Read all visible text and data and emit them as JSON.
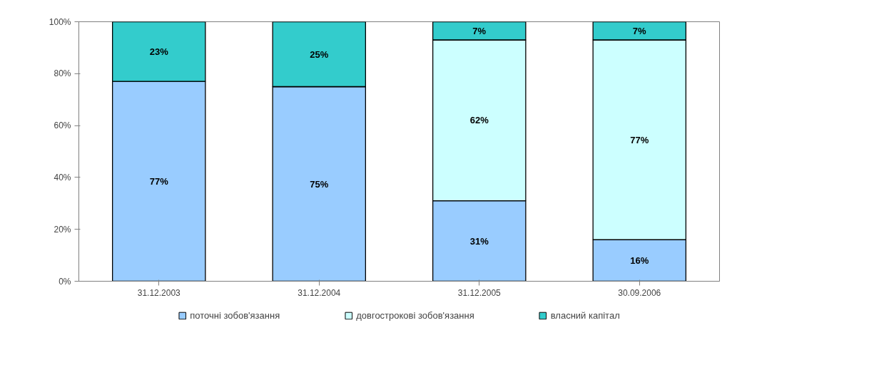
{
  "chart_data": {
    "type": "bar",
    "stacked": true,
    "categories": [
      "31.12.2003",
      "31.12.2004",
      "31.12.2005",
      "30.09.2006"
    ],
    "ylim": [
      0,
      100
    ],
    "yticks": [
      {
        "value": 0,
        "label": "0%"
      },
      {
        "value": 20,
        "label": "20%"
      },
      {
        "value": 40,
        "label": "40%"
      },
      {
        "value": 60,
        "label": "60%"
      },
      {
        "value": 80,
        "label": "80%"
      },
      {
        "value": 100,
        "label": "100%"
      }
    ],
    "grid": false,
    "legend": "bottom",
    "series": [
      {
        "name": "поточні зобов'язання",
        "color": "#99ccff",
        "values": [
          77,
          75,
          31,
          16
        ],
        "value_labels": [
          "77%",
          "75%",
          "31%",
          "16%"
        ]
      },
      {
        "name": "довгострокові зобов'язання",
        "color": "#ccffff",
        "values": [
          0,
          0,
          62,
          77
        ],
        "value_labels": [
          null,
          null,
          "62%",
          "77%"
        ]
      },
      {
        "name": "власний капітал",
        "color": "#33cccc",
        "values": [
          23,
          25,
          7,
          7
        ],
        "value_labels": [
          "23%",
          "25%",
          "7%",
          "7%"
        ]
      }
    ]
  }
}
